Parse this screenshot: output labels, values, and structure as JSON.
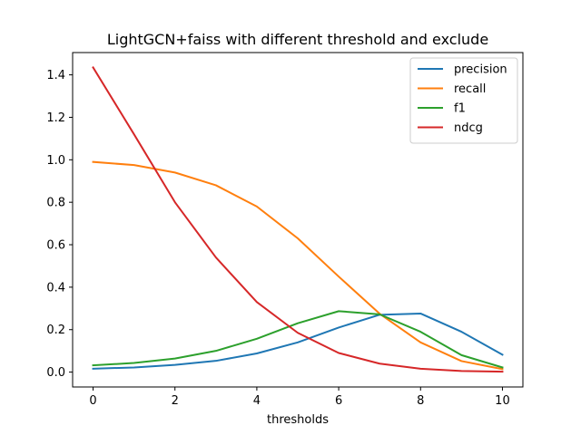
{
  "chart_data": {
    "type": "line",
    "title": "LightGCN+faiss with different threshold and exclude",
    "xlabel": "thresholds",
    "ylabel": "",
    "x": [
      0,
      1,
      2,
      3,
      4,
      5,
      6,
      7,
      8,
      9,
      10
    ],
    "xlim": [
      -0.5,
      10.5
    ],
    "ylim": [
      -0.07,
      1.505
    ],
    "xticks": [
      0,
      2,
      4,
      6,
      8,
      10
    ],
    "yticks": [
      0.0,
      0.2,
      0.4,
      0.6,
      0.8,
      1.0,
      1.2,
      1.4
    ],
    "xtick_labels": [
      "0",
      "2",
      "4",
      "6",
      "8",
      "10"
    ],
    "ytick_labels": [
      "0.0",
      "0.2",
      "0.4",
      "0.6",
      "0.8",
      "1.0",
      "1.2",
      "1.4"
    ],
    "grid": false,
    "legend_position": "top-right",
    "series": [
      {
        "name": "precision",
        "color": "#1f77b4",
        "values": [
          0.016,
          0.022,
          0.034,
          0.053,
          0.088,
          0.14,
          0.21,
          0.27,
          0.276,
          0.19,
          0.082
        ]
      },
      {
        "name": "recall",
        "color": "#ff7f0e",
        "values": [
          0.99,
          0.975,
          0.94,
          0.88,
          0.78,
          0.63,
          0.45,
          0.275,
          0.14,
          0.052,
          0.014
        ]
      },
      {
        "name": "f1",
        "color": "#2ca02c",
        "values": [
          0.032,
          0.043,
          0.064,
          0.1,
          0.157,
          0.23,
          0.287,
          0.272,
          0.19,
          0.08,
          0.022
        ]
      },
      {
        "name": "ndcg",
        "color": "#d62728",
        "values": [
          1.435,
          1.12,
          0.8,
          0.54,
          0.33,
          0.185,
          0.09,
          0.04,
          0.016,
          0.005,
          0.002
        ]
      }
    ]
  }
}
